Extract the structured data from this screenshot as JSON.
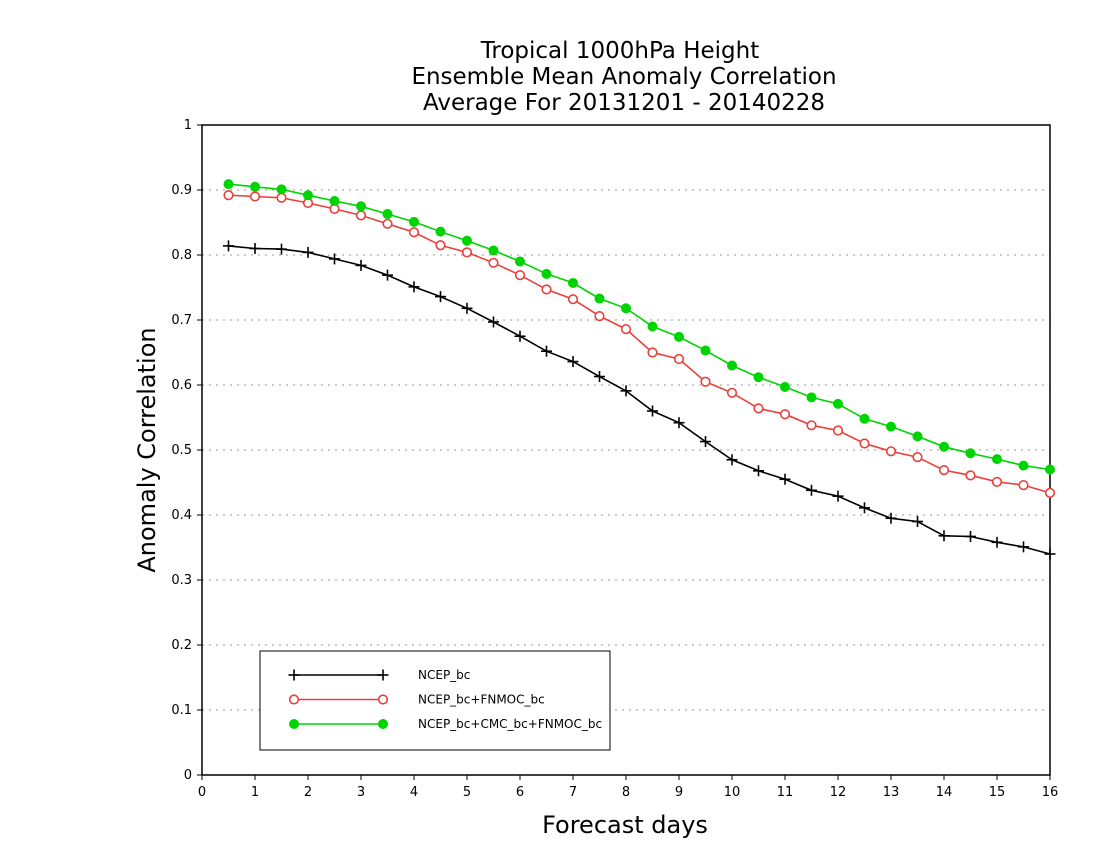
{
  "chart_data": {
    "type": "line",
    "title_lines": [
      "Tropical 1000hPa Height",
      "Ensemble Mean Anomaly Correlation",
      "Average For 20131201 - 20140228"
    ],
    "xlabel": "Forecast days",
    "ylabel": "Anomaly Correlation",
    "xlim": [
      0,
      16
    ],
    "ylim": [
      0,
      1
    ],
    "xticks": [
      "0",
      "1",
      "2",
      "3",
      "4",
      "5",
      "6",
      "7",
      "8",
      "9",
      "10",
      "11",
      "12",
      "13",
      "14",
      "15",
      "16"
    ],
    "yticks": [
      "0",
      "0.1",
      "0.2",
      "0.3",
      "0.4",
      "0.5",
      "0.6",
      "0.7",
      "0.8",
      "0.9",
      "1"
    ],
    "grid": true,
    "legend_position": "bottom-left",
    "x": [
      0.5,
      1,
      1.5,
      2,
      2.5,
      3,
      3.5,
      4,
      4.5,
      5,
      5.5,
      6,
      6.5,
      7,
      7.5,
      8,
      8.5,
      9,
      9.5,
      10,
      10.5,
      11,
      11.5,
      12,
      12.5,
      13,
      13.5,
      14,
      14.5,
      15,
      15.5,
      16
    ],
    "series": [
      {
        "name": "NCEP_bc",
        "color": "#000000",
        "marker": "plus",
        "values": [
          0.814,
          0.81,
          0.809,
          0.804,
          0.794,
          0.784,
          0.769,
          0.751,
          0.736,
          0.718,
          0.697,
          0.675,
          0.652,
          0.636,
          0.613,
          0.591,
          0.56,
          0.542,
          0.513,
          0.485,
          0.468,
          0.455,
          0.438,
          0.429,
          0.411,
          0.395,
          0.39,
          0.368,
          0.367,
          0.358,
          0.351,
          0.34
        ]
      },
      {
        "name": "NCEP_bc+FNMOC_bc",
        "color": "#e8413c",
        "marker": "open-circle",
        "values": [
          0.892,
          0.89,
          0.888,
          0.88,
          0.871,
          0.861,
          0.848,
          0.835,
          0.815,
          0.804,
          0.788,
          0.769,
          0.747,
          0.732,
          0.706,
          0.686,
          0.65,
          0.64,
          0.605,
          0.588,
          0.564,
          0.555,
          0.538,
          0.53,
          0.51,
          0.498,
          0.489,
          0.469,
          0.461,
          0.451,
          0.446,
          0.434
        ]
      },
      {
        "name": "NCEP_bc+CMC_bc+FNMOC_bc",
        "color": "#00d400",
        "marker": "filled-circle",
        "values": [
          0.909,
          0.905,
          0.901,
          0.892,
          0.883,
          0.875,
          0.863,
          0.851,
          0.836,
          0.822,
          0.807,
          0.79,
          0.771,
          0.757,
          0.733,
          0.718,
          0.69,
          0.674,
          0.653,
          0.63,
          0.612,
          0.597,
          0.581,
          0.571,
          0.548,
          0.536,
          0.521,
          0.505,
          0.495,
          0.486,
          0.476,
          0.47
        ]
      }
    ]
  }
}
